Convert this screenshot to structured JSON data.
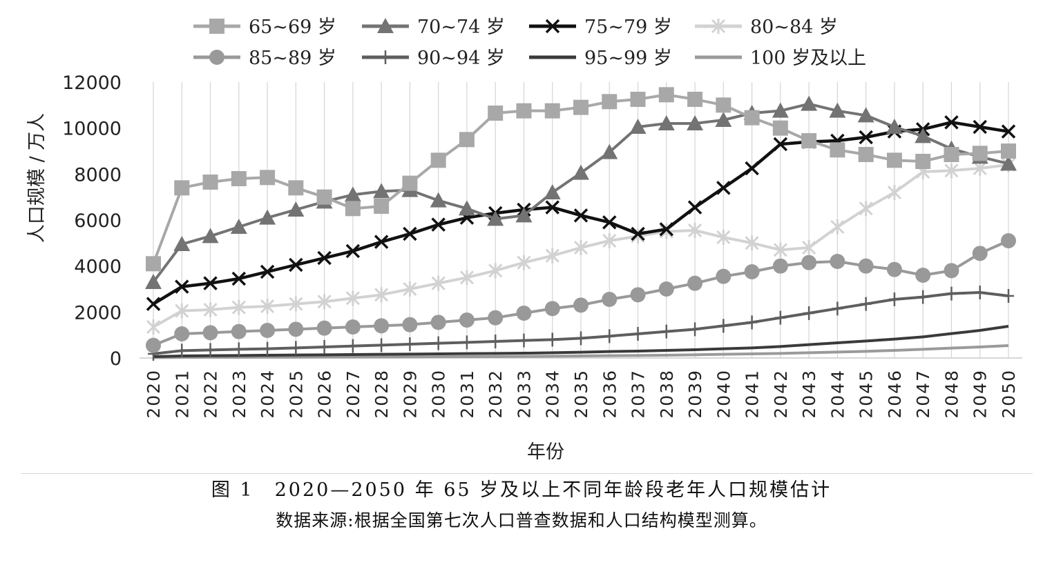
{
  "chart_data": {
    "type": "line",
    "xlabel": "年份",
    "ylabel": "人口规模 / 万人",
    "ylim": [
      0,
      12000
    ],
    "yticks": [
      "0",
      "2000",
      "4000",
      "6000",
      "8000",
      "10000",
      "12000"
    ],
    "legend_position": "top",
    "grid": "vertical",
    "x": [
      "2020",
      "2021",
      "2022",
      "2023",
      "2024",
      "2025",
      "2026",
      "2027",
      "2028",
      "2029",
      "2030",
      "2031",
      "2032",
      "2033",
      "2034",
      "2035",
      "2036",
      "2037",
      "2038",
      "2039",
      "2040",
      "2041",
      "2042",
      "2043",
      "2044",
      "2045",
      "2046",
      "2047",
      "2048",
      "2049",
      "2050"
    ],
    "series": [
      {
        "name": "65~69 岁",
        "color": "#a8a8a8",
        "marker": "square",
        "values": [
          4100,
          7400,
          7650,
          7800,
          7850,
          7400,
          7000,
          6500,
          6600,
          7600,
          8600,
          9500,
          10650,
          10750,
          10750,
          10900,
          11150,
          11250,
          11450,
          11250,
          11000,
          10450,
          10000,
          9450,
          9050,
          8850,
          8600,
          8550,
          8850,
          8900,
          9000
        ]
      },
      {
        "name": "70~74 岁",
        "color": "#737373",
        "marker": "triangle",
        "values": [
          3300,
          4950,
          5300,
          5700,
          6100,
          6450,
          6800,
          7100,
          7250,
          7300,
          6850,
          6500,
          6050,
          6200,
          7200,
          8050,
          8950,
          10050,
          10200,
          10200,
          10350,
          10650,
          10750,
          11050,
          10750,
          10550,
          10050,
          9650,
          9100,
          8750,
          8450
        ]
      },
      {
        "name": "75~79 岁",
        "color": "#111111",
        "marker": "x",
        "values": [
          2350,
          3100,
          3250,
          3450,
          3750,
          4050,
          4350,
          4650,
          5050,
          5400,
          5800,
          6100,
          6300,
          6450,
          6550,
          6200,
          5900,
          5400,
          5600,
          6550,
          7400,
          8250,
          9300,
          9400,
          9450,
          9600,
          9850,
          9950,
          10250,
          10050,
          9850
        ]
      },
      {
        "name": "80~84 岁",
        "color": "#d2d2d2",
        "marker": "star",
        "values": [
          1350,
          2050,
          2100,
          2200,
          2250,
          2350,
          2450,
          2600,
          2750,
          3000,
          3250,
          3500,
          3800,
          4150,
          4450,
          4800,
          5100,
          5300,
          5500,
          5550,
          5250,
          5000,
          4700,
          4800,
          5700,
          6500,
          7200,
          8100,
          8150,
          8250,
          8400
        ]
      },
      {
        "name": "85~89 岁",
        "color": "#999999",
        "marker": "circle",
        "values": [
          550,
          1050,
          1100,
          1150,
          1200,
          1250,
          1300,
          1350,
          1400,
          1450,
          1550,
          1650,
          1750,
          1950,
          2150,
          2300,
          2550,
          2750,
          3000,
          3250,
          3550,
          3750,
          4000,
          4150,
          4200,
          4000,
          3850,
          3600,
          3800,
          4550,
          5100
        ]
      },
      {
        "name": "90~94 岁",
        "color": "#5e5e5e",
        "marker": "plus",
        "values": [
          180,
          320,
          350,
          380,
          400,
          440,
          480,
          520,
          560,
          600,
          640,
          680,
          720,
          760,
          800,
          860,
          950,
          1050,
          1150,
          1250,
          1400,
          1550,
          1750,
          1950,
          2150,
          2350,
          2550,
          2650,
          2800,
          2850,
          2700
        ]
      },
      {
        "name": "95~99 岁",
        "color": "#3a3a3a",
        "marker": "none",
        "values": [
          60,
          90,
          100,
          110,
          120,
          130,
          140,
          150,
          160,
          170,
          180,
          190,
          200,
          210,
          230,
          250,
          280,
          300,
          330,
          360,
          400,
          440,
          500,
          580,
          660,
          740,
          820,
          920,
          1060,
          1200,
          1380
        ]
      },
      {
        "name": "100 岁及以上",
        "color": "#9a9a9a",
        "marker": "none",
        "values": [
          20,
          25,
          30,
          30,
          35,
          35,
          40,
          40,
          45,
          50,
          55,
          60,
          65,
          70,
          80,
          90,
          100,
          110,
          120,
          140,
          160,
          180,
          200,
          230,
          260,
          290,
          330,
          380,
          430,
          480,
          540
        ]
      }
    ]
  },
  "caption": {
    "title": "图 1　2020—2050 年 65 岁及以上不同年龄段老年人口规模估计",
    "source": "数据来源:根据全国第七次人口普查数据和人口结构模型测算。"
  }
}
